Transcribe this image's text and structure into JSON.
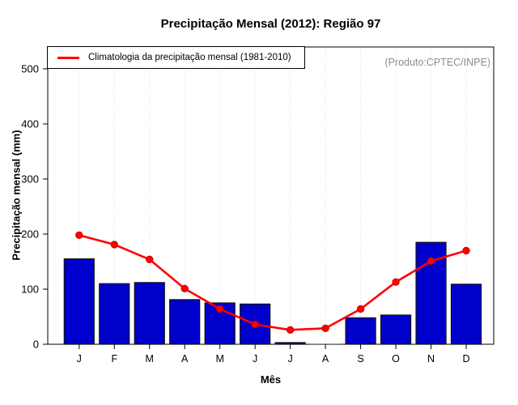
{
  "chart_data": {
    "type": "bar",
    "title": "Precipitação Mensal (2012): Região 97",
    "xlabel": "Mês",
    "ylabel": "Precipitação mensal (mm)",
    "annotation": "(Produto:CPTEC/INPE)",
    "categories": [
      "J",
      "F",
      "M",
      "A",
      "M",
      "J",
      "J",
      "A",
      "S",
      "O",
      "N",
      "D"
    ],
    "series": [
      {
        "name": "2012",
        "type": "bar",
        "color": "#0000CD",
        "values": [
          155,
          110,
          112,
          81,
          75,
          73,
          3,
          0,
          48,
          53,
          185,
          109
        ]
      },
      {
        "name": "Climatologia da precipitação mensal (1981-2010)",
        "type": "line",
        "color": "#FF0000",
        "values": [
          198,
          181,
          154,
          101,
          64,
          36,
          26,
          29,
          64,
          113,
          151,
          170
        ]
      }
    ],
    "ylim": [
      0,
      540
    ],
    "yticks": [
      0,
      100,
      200,
      300,
      400,
      500
    ],
    "grid": "vertical-dotted",
    "legend_position": "top-left",
    "colors": {
      "bar_fill": "#0000CD",
      "bar_border": "#111111",
      "line": "#FF0000",
      "point_fill": "#FF0000",
      "point_border": "#D00000",
      "grid": "#D8D8D8",
      "axis": "#000000",
      "annotation_text": "#8C8C8C",
      "zero_bar_line": "#9A9A9A"
    }
  }
}
